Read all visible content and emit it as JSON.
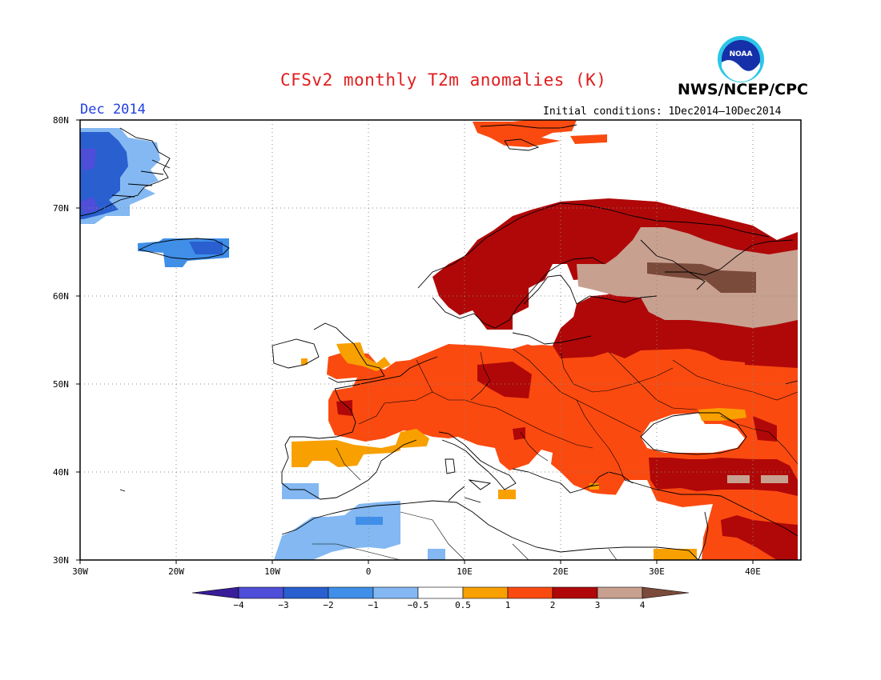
{
  "header": {
    "title": "CFSv2 monthly T2m anomalies (K)",
    "agency": "NWS/NCEP/CPC",
    "month": "Dec 2014",
    "initial_conditions": "Initial conditions: 1Dec2014—10Dec2014",
    "logo_text": "NOAA"
  },
  "map": {
    "region": "Europe",
    "lon_range": [
      -30,
      45
    ],
    "lat_range": [
      30,
      80
    ],
    "lat_ticks": [
      "30N",
      "40N",
      "50N",
      "60N",
      "70N",
      "80N"
    ],
    "lon_ticks": [
      "30W",
      "20W",
      "10W",
      "0",
      "10E",
      "20E",
      "30E",
      "40E"
    ],
    "grid": true,
    "anomaly_regions": [
      {
        "area": "Eastern Greenland",
        "category": "-3 to -2"
      },
      {
        "area": "Southeast Greenland coast",
        "category": "-4 to -3"
      },
      {
        "area": "Iceland",
        "category": "-3 to -2"
      },
      {
        "area": "Scandinavia",
        "category": "2 to 3"
      },
      {
        "area": "Northwest Russia",
        "category": "3 to 4"
      },
      {
        "area": "Central and Eastern Europe",
        "category": "1 to 2"
      },
      {
        "area": "Southern UK / Northern Spain",
        "category": "0.5 to 1"
      },
      {
        "area": "Northwest Africa",
        "category": "-1 to -0.5"
      },
      {
        "area": "Turkey / Caucasus",
        "category": "2 to 3"
      }
    ]
  },
  "legend": {
    "labels": [
      "−4",
      "−3",
      "−2",
      "−1",
      "−0.5",
      "0.5",
      "1",
      "2",
      "3",
      "4"
    ],
    "colors": [
      "#3a1e99",
      "#4e4ed8",
      "#2a5fd0",
      "#3f8fe8",
      "#83b8f2",
      "#ffffff",
      "#f8a000",
      "#fa4a10",
      "#b00808",
      "#c8a090",
      "#7a4a3a"
    ]
  }
}
